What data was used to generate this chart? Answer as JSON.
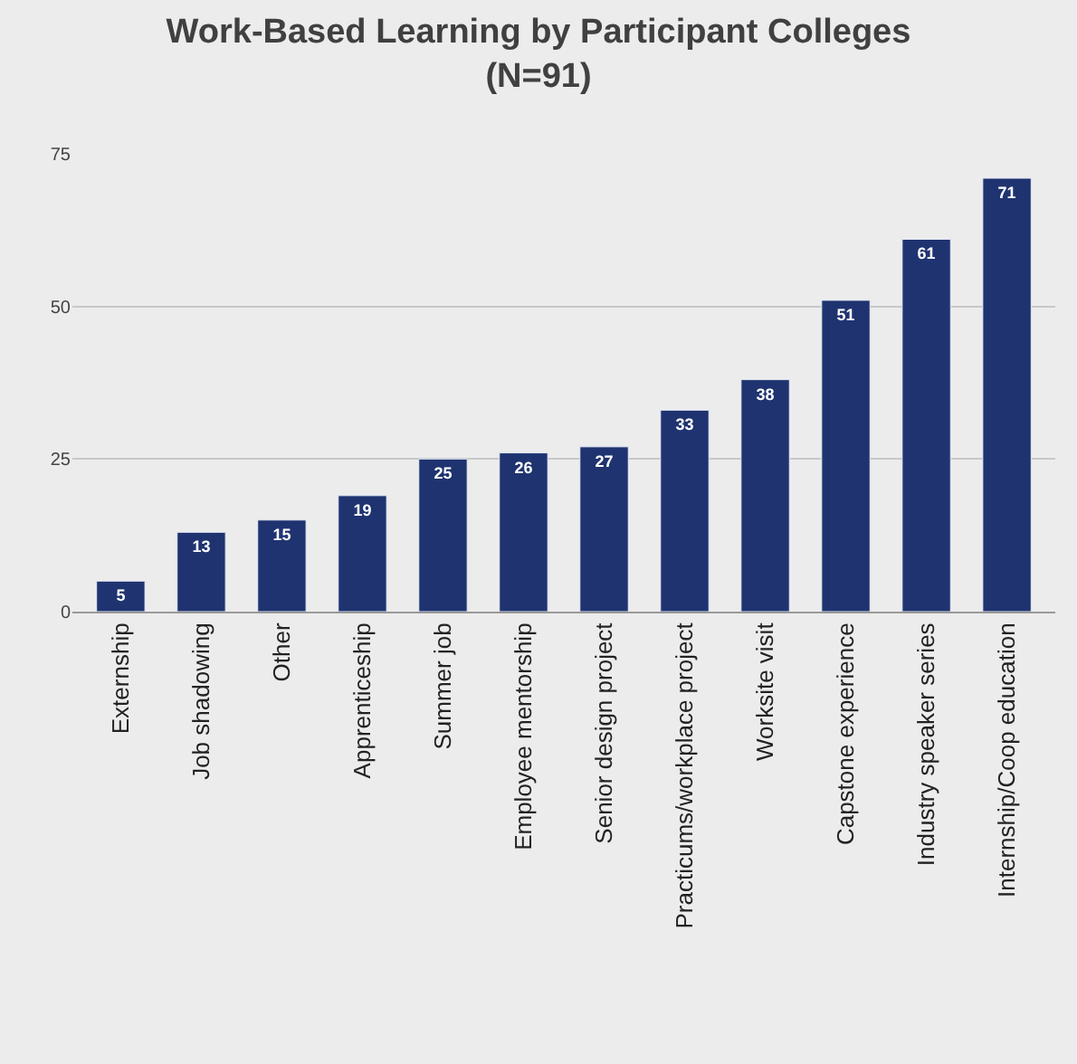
{
  "chart_data": {
    "type": "bar",
    "title": "Work-Based Learning by Participant Colleges\n(N=91)",
    "categories": [
      "Externship",
      "Job shadowing",
      "Other",
      "Apprenticeship",
      "Summer job",
      "Employee mentorship",
      "Senior design project",
      "Practicums/workplace project",
      "Worksite visit",
      "Capstone experience",
      "Industry speaker series",
      "Internship/Coop education"
    ],
    "values": [
      5,
      13,
      15,
      19,
      25,
      26,
      27,
      33,
      38,
      51,
      61,
      71
    ],
    "color": "#1f3370",
    "ylim": [
      0,
      75
    ],
    "yticks": [
      0,
      25,
      50,
      75
    ],
    "grid": "y",
    "data_labels": true,
    "legend": false
  }
}
